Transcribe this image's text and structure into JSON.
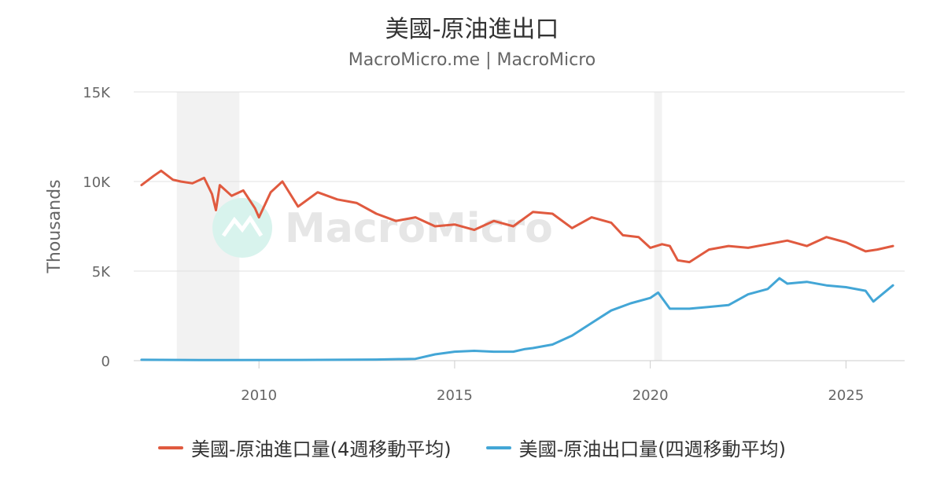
{
  "chart_data": {
    "type": "line",
    "title": "美國-原油進出口",
    "subtitle": "MacroMicro.me | MacroMicro",
    "watermark": "MacroMicro",
    "ylabel": "Thousands",
    "xlim": [
      2006.8,
      2026.5
    ],
    "ylim": [
      0,
      15000
    ],
    "y_ticks": [
      {
        "value": 0,
        "label": "0"
      },
      {
        "value": 5000,
        "label": "5K"
      },
      {
        "value": 10000,
        "label": "10K"
      },
      {
        "value": 15000,
        "label": "15K"
      }
    ],
    "x_ticks": [
      {
        "value": 2010,
        "label": "2010"
      },
      {
        "value": 2015,
        "label": "2015"
      },
      {
        "value": 2020,
        "label": "2020"
      },
      {
        "value": 2025,
        "label": "2025"
      }
    ],
    "grid": true,
    "legend_position": "bottom-center",
    "recession_bands": [
      [
        2007.9,
        2009.5
      ],
      [
        2020.1,
        2020.3
      ]
    ],
    "series": [
      {
        "name": "美國-原油進口量(4週移動平均)",
        "color": "#e05a3f",
        "x": [
          2007.0,
          2007.3,
          2007.5,
          2007.8,
          2008.0,
          2008.3,
          2008.6,
          2008.8,
          2008.9,
          2009.0,
          2009.3,
          2009.6,
          2009.9,
          2010.0,
          2010.3,
          2010.6,
          2011.0,
          2011.5,
          2012.0,
          2012.5,
          2013.0,
          2013.5,
          2014.0,
          2014.5,
          2015.0,
          2015.5,
          2016.0,
          2016.5,
          2017.0,
          2017.5,
          2018.0,
          2018.5,
          2019.0,
          2019.3,
          2019.7,
          2020.0,
          2020.3,
          2020.5,
          2020.7,
          2021.0,
          2021.5,
          2022.0,
          2022.5,
          2023.0,
          2023.5,
          2024.0,
          2024.5,
          2025.0,
          2025.5,
          2025.8,
          2026.2
        ],
        "values": [
          9800,
          10300,
          10600,
          10100,
          10000,
          9900,
          10200,
          9300,
          8400,
          9800,
          9200,
          9500,
          8500,
          8000,
          9400,
          10000,
          8600,
          9400,
          9000,
          8800,
          8200,
          7800,
          8000,
          7500,
          7600,
          7300,
          7800,
          7500,
          8300,
          8200,
          7400,
          8000,
          7700,
          7000,
          6900,
          6300,
          6500,
          6400,
          5600,
          5500,
          6200,
          6400,
          6300,
          6500,
          6700,
          6400,
          6900,
          6600,
          6100,
          6200,
          6400
        ]
      },
      {
        "name": "美國-原油出口量(四週移動平均)",
        "color": "#43a6d6",
        "x": [
          2007.0,
          2009.0,
          2011.0,
          2013.0,
          2014.0,
          2014.5,
          2015.0,
          2015.5,
          2016.0,
          2016.5,
          2016.8,
          2017.0,
          2017.5,
          2018.0,
          2018.5,
          2019.0,
          2019.5,
          2020.0,
          2020.2,
          2020.5,
          2021.0,
          2021.5,
          2022.0,
          2022.5,
          2023.0,
          2023.3,
          2023.5,
          2024.0,
          2024.5,
          2025.0,
          2025.5,
          2025.7,
          2026.2
        ],
        "values": [
          50,
          30,
          40,
          60,
          100,
          350,
          500,
          550,
          500,
          500,
          650,
          700,
          900,
          1400,
          2100,
          2800,
          3200,
          3500,
          3800,
          2900,
          2900,
          3000,
          3100,
          3700,
          4000,
          4600,
          4300,
          4400,
          4200,
          4100,
          3900,
          3300,
          4200
        ]
      }
    ]
  }
}
